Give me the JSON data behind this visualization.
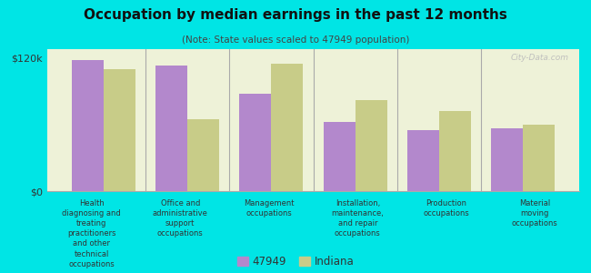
{
  "title": "Occupation by median earnings in the past 12 months",
  "subtitle": "(Note: State values scaled to 47949 population)",
  "background_color": "#00e5e5",
  "plot_bg_color": "#eef2d8",
  "categories": [
    "Health\ndiagnosing and\ntreating\npractitioners\nand other\ntechnical\noccupations",
    "Office and\nadministrative\nsupport\noccupations",
    "Management\noccupations",
    "Installation,\nmaintenance,\nand repair\noccupations",
    "Production\noccupations",
    "Material\nmoving\noccupations"
  ],
  "values_47949": [
    118000,
    113000,
    88000,
    62000,
    55000,
    57000
  ],
  "values_indiana": [
    110000,
    65000,
    115000,
    82000,
    72000,
    60000
  ],
  "color_47949": "#b388cc",
  "color_indiana": "#c8cc88",
  "ylim": [
    0,
    128000
  ],
  "yticks": [
    0,
    120000
  ],
  "ytick_labels": [
    "$0",
    "$120k"
  ],
  "legend_label_47949": "47949",
  "legend_label_indiana": "Indiana",
  "bar_width": 0.38
}
